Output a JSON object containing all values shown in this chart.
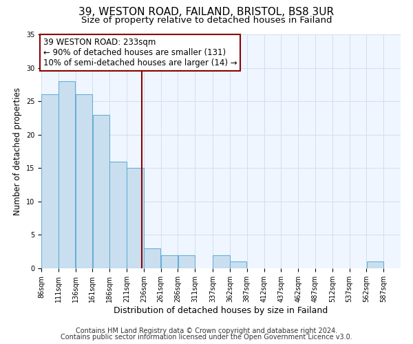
{
  "title": "39, WESTON ROAD, FAILAND, BRISTOL, BS8 3UR",
  "subtitle": "Size of property relative to detached houses in Failand",
  "xlabel": "Distribution of detached houses by size in Failand",
  "ylabel": "Number of detached properties",
  "bar_left_edges": [
    86,
    111,
    136,
    161,
    186,
    211,
    236,
    261,
    286,
    311,
    337,
    362,
    387,
    412,
    437,
    462,
    487,
    512,
    537,
    562
  ],
  "bar_heights": [
    26,
    28,
    26,
    23,
    16,
    15,
    3,
    2,
    2,
    0,
    2,
    1,
    0,
    0,
    0,
    0,
    0,
    0,
    0,
    1
  ],
  "bin_width": 25,
  "bar_color": "#c9dff0",
  "bar_edge_color": "#6aaed6",
  "reference_line_x": 233,
  "reference_line_color": "#8b0000",
  "annotation_line1": "39 WESTON ROAD: 233sqm",
  "annotation_line2": "← 90% of detached houses are smaller (131)",
  "annotation_line3": "10% of semi-detached houses are larger (14) →",
  "xlim_left": 86,
  "xlim_right": 612,
  "ylim": [
    0,
    35
  ],
  "yticks": [
    0,
    5,
    10,
    15,
    20,
    25,
    30,
    35
  ],
  "xtick_labels": [
    "86sqm",
    "111sqm",
    "136sqm",
    "161sqm",
    "186sqm",
    "211sqm",
    "236sqm",
    "261sqm",
    "286sqm",
    "311sqm",
    "337sqm",
    "362sqm",
    "387sqm",
    "412sqm",
    "437sqm",
    "462sqm",
    "487sqm",
    "512sqm",
    "537sqm",
    "562sqm",
    "587sqm"
  ],
  "xtick_positions": [
    86,
    111,
    136,
    161,
    186,
    211,
    236,
    261,
    286,
    311,
    337,
    362,
    387,
    412,
    437,
    462,
    487,
    512,
    537,
    562,
    587
  ],
  "grid_color": "#d0dff0",
  "bg_color": "#f0f6ff",
  "footer1": "Contains HM Land Registry data © Crown copyright and database right 2024.",
  "footer2": "Contains public sector information licensed under the Open Government Licence v3.0.",
  "title_fontsize": 11,
  "subtitle_fontsize": 9.5,
  "xlabel_fontsize": 9,
  "ylabel_fontsize": 8.5,
  "tick_fontsize": 7,
  "annotation_fontsize": 8.5,
  "footer_fontsize": 7
}
